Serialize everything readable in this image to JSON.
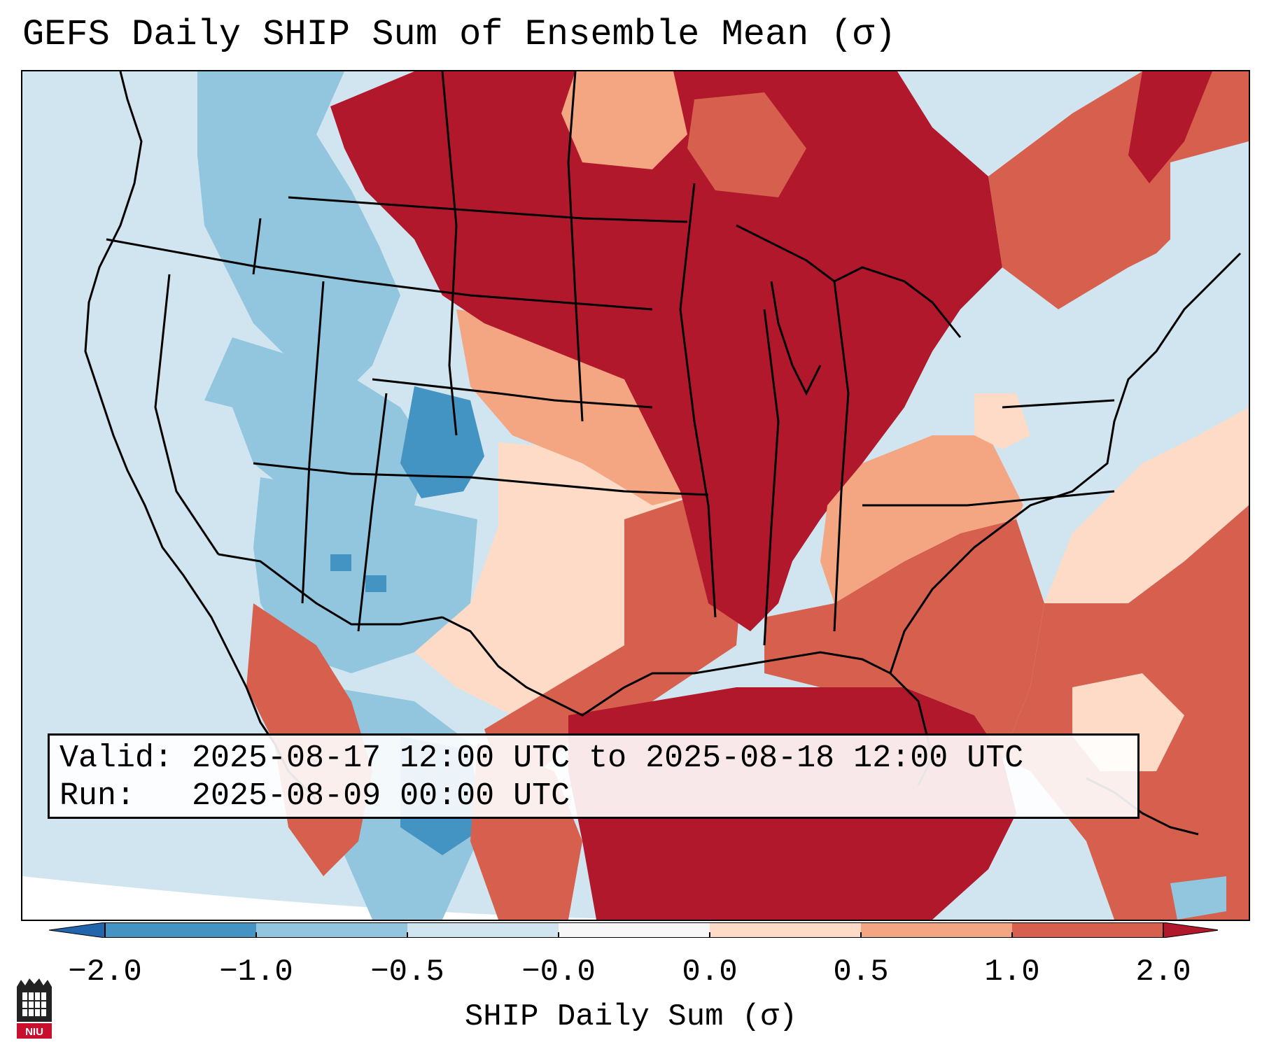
{
  "figure": {
    "title": "GEFS Daily SHIP Sum of Ensemble Mean (σ)",
    "valid_line": "Valid: 2025-08-17 12:00 UTC to 2025-08-18 12:00 UTC",
    "run_line": "Run:   2025-08-09 00:00 UTC"
  },
  "colorbar": {
    "label": "SHIP Daily Sum (σ)",
    "ticks": [
      "−2.0",
      "−1.0",
      "−0.5",
      "−0.0",
      "0.0",
      "0.5",
      "1.0",
      "2.0"
    ],
    "colors": [
      "#4393c3",
      "#92c5de",
      "#d1e5f0",
      "#f7f7f7",
      "#fddbc7",
      "#f4a582",
      "#d6604d",
      "#b2182b"
    ],
    "under_color": "#2166ac",
    "over_color": "#b2182b"
  },
  "logo": {
    "text": "NIU",
    "color": "#c8102e"
  },
  "colors": {
    "frame": "#000000",
    "land_boundaries": "#000000",
    "ocean_background": "#d1e5f0"
  }
}
